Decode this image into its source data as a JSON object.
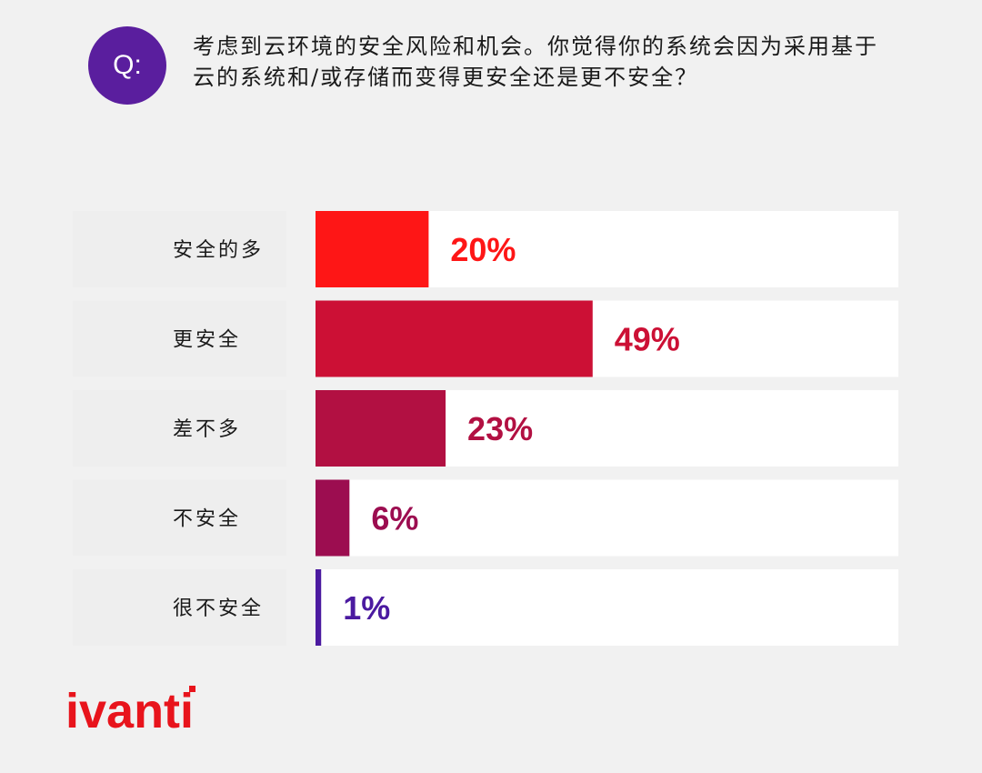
{
  "badge": {
    "label": "Q:"
  },
  "question": "考虑到云环境的安全风险和机会。你觉得你的系统会因为采用基于云的系统和/或存储而变得更安全还是更不安全？",
  "logo": {
    "text": "ivanti",
    "color": "#e8141c"
  },
  "chart_data": {
    "type": "bar",
    "orientation": "horizontal",
    "categories": [
      "安全的多",
      "更安全",
      "差不多",
      "不安全",
      "很不安全"
    ],
    "values": [
      20,
      49,
      23,
      6,
      1
    ],
    "value_labels": [
      "20%",
      "49%",
      "23%",
      "6%",
      "1%"
    ],
    "colors": [
      "#fe1616",
      "#cc1035",
      "#b21042",
      "#9c0d50",
      "#4b1aa0"
    ],
    "xlim": [
      0,
      100
    ],
    "grid": false,
    "legend": "none"
  }
}
